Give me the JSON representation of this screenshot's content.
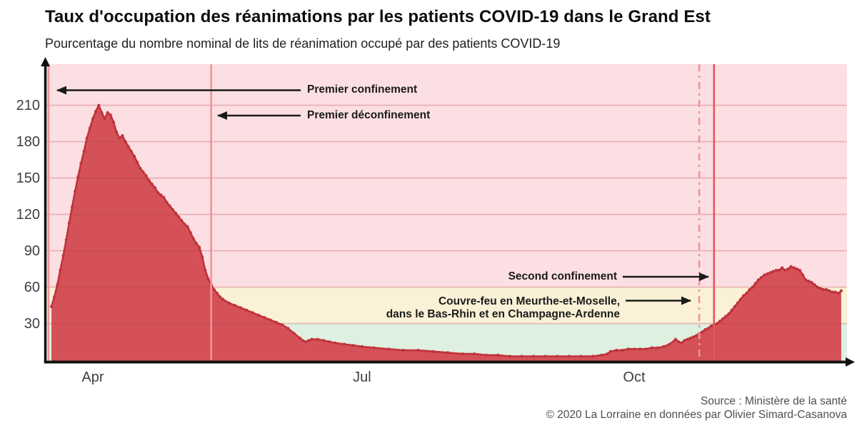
{
  "title": "Taux d'occupation des réanimations par les patients COVID-19 dans le Grand Est",
  "subtitle": "Pourcentage du nombre nominal de lits de réanimation occupé par des patients COVID-19",
  "footer": {
    "source_line": "Source : Ministère de la santé",
    "credit_line": "© 2020 La Lorraine en données par Olivier Simard-Casanova"
  },
  "annotations": {
    "premier_confinement": "Premier confinement",
    "premier_deconfinement": "Premier déconfinement",
    "second_confinement": "Second confinement",
    "couvre_feu_line1": "Couvre-feu en Meurthe-et-Moselle,",
    "couvre_feu_line2": "dans le Bas-Rhin et en Champagne-Ardenne"
  },
  "chart_data": {
    "type": "area",
    "title": "Taux d'occupation des réanimations par les patients COVID-19 dans le Grand Est",
    "xlabel": "",
    "ylabel": "",
    "ylim": [
      0,
      245
    ],
    "yticks": [
      30,
      60,
      90,
      120,
      150,
      180,
      210
    ],
    "xticks": [
      {
        "date": "2020-04-01",
        "label": "Apr"
      },
      {
        "date": "2020-07-01",
        "label": "Jul"
      },
      {
        "date": "2020-10-01",
        "label": "Oct"
      }
    ],
    "x_start_date": "2020-03-18",
    "grid": true,
    "legend": "none",
    "colors": {
      "band_green": "#def0e0",
      "band_yellow": "#faf1d7",
      "band_pink": "#fcdfe2",
      "gridline": "rgba(235,140,150,0.38)",
      "event_line_light": "#ef949a",
      "event_line_strong": "#e25560",
      "area_fill": "#d45158",
      "area_line": "#c0333c",
      "axis": "#111111",
      "annotation_arrow": "#1a1a1a"
    },
    "bands": [
      {
        "from": 0,
        "to": 30,
        "color_key": "band_green"
      },
      {
        "from": 30,
        "to": 60,
        "color_key": "band_yellow"
      },
      {
        "from": 60,
        "to": 245,
        "color_key": "band_pink"
      }
    ],
    "events": [
      {
        "date": "2020-03-17",
        "label": "Premier confinement",
        "style": "solid",
        "color_key": "event_line_light"
      },
      {
        "date": "2020-05-11",
        "label": "Premier déconfinement",
        "style": "solid",
        "color_key": "event_line_light"
      },
      {
        "date": "2020-10-23",
        "label": "Couvre-feu en Meurthe-et-Moselle, dans le Bas-Rhin et en Champagne-Ardenne",
        "style": "dashdot",
        "color_key": "event_line_light"
      },
      {
        "date": "2020-10-28",
        "label": "Second confinement",
        "style": "solid",
        "color_key": "event_line_strong"
      }
    ],
    "series": [
      {
        "name": "Taux d'occupation des réanimations (%)",
        "points": [
          [
            "2020-03-18",
            44
          ],
          [
            "2020-03-19",
            52
          ],
          [
            "2020-03-20",
            62
          ],
          [
            "2020-03-21",
            74
          ],
          [
            "2020-03-22",
            86
          ],
          [
            "2020-03-23",
            99
          ],
          [
            "2020-03-24",
            113
          ],
          [
            "2020-03-25",
            126
          ],
          [
            "2020-03-26",
            139
          ],
          [
            "2020-03-27",
            151
          ],
          [
            "2020-03-28",
            162
          ],
          [
            "2020-03-29",
            172
          ],
          [
            "2020-03-30",
            183
          ],
          [
            "2020-03-31",
            191
          ],
          [
            "2020-04-01",
            199
          ],
          [
            "2020-04-02",
            205
          ],
          [
            "2020-04-03",
            210
          ],
          [
            "2020-04-04",
            204
          ],
          [
            "2020-04-05",
            199
          ],
          [
            "2020-04-06",
            204
          ],
          [
            "2020-04-07",
            202
          ],
          [
            "2020-04-08",
            196
          ],
          [
            "2020-04-09",
            188
          ],
          [
            "2020-04-10",
            183
          ],
          [
            "2020-04-11",
            185
          ],
          [
            "2020-04-12",
            180
          ],
          [
            "2020-04-13",
            176
          ],
          [
            "2020-04-14",
            172
          ],
          [
            "2020-04-15",
            168
          ],
          [
            "2020-04-16",
            163
          ],
          [
            "2020-04-17",
            158
          ],
          [
            "2020-04-18",
            155
          ],
          [
            "2020-04-19",
            152
          ],
          [
            "2020-04-20",
            148
          ],
          [
            "2020-04-21",
            145
          ],
          [
            "2020-04-22",
            142
          ],
          [
            "2020-04-23",
            138
          ],
          [
            "2020-04-24",
            136
          ],
          [
            "2020-04-25",
            134
          ],
          [
            "2020-04-26",
            130
          ],
          [
            "2020-04-27",
            127
          ],
          [
            "2020-04-28",
            124
          ],
          [
            "2020-04-29",
            121
          ],
          [
            "2020-04-30",
            118
          ],
          [
            "2020-05-01",
            115
          ],
          [
            "2020-05-02",
            112
          ],
          [
            "2020-05-03",
            110
          ],
          [
            "2020-05-04",
            105
          ],
          [
            "2020-05-05",
            100
          ],
          [
            "2020-05-06",
            96
          ],
          [
            "2020-05-07",
            93
          ],
          [
            "2020-05-08",
            85
          ],
          [
            "2020-05-09",
            74
          ],
          [
            "2020-05-10",
            67
          ],
          [
            "2020-05-11",
            62
          ],
          [
            "2020-05-12",
            58
          ],
          [
            "2020-05-13",
            55
          ],
          [
            "2020-05-14",
            52
          ],
          [
            "2020-05-15",
            50
          ],
          [
            "2020-05-17",
            47
          ],
          [
            "2020-05-19",
            45
          ],
          [
            "2020-05-21",
            43
          ],
          [
            "2020-05-23",
            41
          ],
          [
            "2020-05-25",
            39
          ],
          [
            "2020-05-27",
            37
          ],
          [
            "2020-05-29",
            35
          ],
          [
            "2020-05-31",
            33
          ],
          [
            "2020-06-02",
            31
          ],
          [
            "2020-06-04",
            29
          ],
          [
            "2020-06-06",
            26
          ],
          [
            "2020-06-08",
            22
          ],
          [
            "2020-06-10",
            18
          ],
          [
            "2020-06-11",
            16
          ],
          [
            "2020-06-12",
            15
          ],
          [
            "2020-06-13",
            16
          ],
          [
            "2020-06-14",
            17
          ],
          [
            "2020-06-16",
            17
          ],
          [
            "2020-06-18",
            16
          ],
          [
            "2020-06-20",
            15
          ],
          [
            "2020-06-22",
            14
          ],
          [
            "2020-06-25",
            13
          ],
          [
            "2020-06-28",
            12
          ],
          [
            "2020-07-01",
            11
          ],
          [
            "2020-07-05",
            10
          ],
          [
            "2020-07-10",
            9
          ],
          [
            "2020-07-15",
            8
          ],
          [
            "2020-07-20",
            8
          ],
          [
            "2020-07-25",
            7
          ],
          [
            "2020-07-30",
            6
          ],
          [
            "2020-08-04",
            5
          ],
          [
            "2020-08-08",
            5
          ],
          [
            "2020-08-12",
            4
          ],
          [
            "2020-08-16",
            4
          ],
          [
            "2020-08-20",
            3
          ],
          [
            "2020-08-24",
            3
          ],
          [
            "2020-08-28",
            3
          ],
          [
            "2020-09-01",
            3
          ],
          [
            "2020-09-05",
            3
          ],
          [
            "2020-09-09",
            3
          ],
          [
            "2020-09-13",
            3
          ],
          [
            "2020-09-17",
            3
          ],
          [
            "2020-09-20",
            4
          ],
          [
            "2020-09-22",
            5
          ],
          [
            "2020-09-23",
            7
          ],
          [
            "2020-09-25",
            8
          ],
          [
            "2020-09-27",
            8
          ],
          [
            "2020-09-29",
            9
          ],
          [
            "2020-10-01",
            9
          ],
          [
            "2020-10-03",
            9
          ],
          [
            "2020-10-05",
            9
          ],
          [
            "2020-10-07",
            10
          ],
          [
            "2020-10-09",
            10
          ],
          [
            "2020-10-11",
            11
          ],
          [
            "2020-10-13",
            13
          ],
          [
            "2020-10-15",
            17
          ],
          [
            "2020-10-16",
            15
          ],
          [
            "2020-10-17",
            14
          ],
          [
            "2020-10-18",
            16
          ],
          [
            "2020-10-19",
            17
          ],
          [
            "2020-10-20",
            18
          ],
          [
            "2020-10-21",
            19
          ],
          [
            "2020-10-22",
            20
          ],
          [
            "2020-10-23",
            22
          ],
          [
            "2020-10-24",
            23
          ],
          [
            "2020-10-25",
            25
          ],
          [
            "2020-10-26",
            26
          ],
          [
            "2020-10-27",
            28
          ],
          [
            "2020-10-28",
            29
          ],
          [
            "2020-10-29",
            30
          ],
          [
            "2020-10-30",
            32
          ],
          [
            "2020-10-31",
            34
          ],
          [
            "2020-11-01",
            36
          ],
          [
            "2020-11-02",
            38
          ],
          [
            "2020-11-03",
            41
          ],
          [
            "2020-11-04",
            44
          ],
          [
            "2020-11-05",
            47
          ],
          [
            "2020-11-06",
            50
          ],
          [
            "2020-11-07",
            53
          ],
          [
            "2020-11-08",
            55
          ],
          [
            "2020-11-09",
            58
          ],
          [
            "2020-11-10",
            60
          ],
          [
            "2020-11-11",
            63
          ],
          [
            "2020-11-12",
            66
          ],
          [
            "2020-11-13",
            68
          ],
          [
            "2020-11-14",
            70
          ],
          [
            "2020-11-15",
            71
          ],
          [
            "2020-11-16",
            72
          ],
          [
            "2020-11-17",
            73
          ],
          [
            "2020-11-18",
            74
          ],
          [
            "2020-11-19",
            74
          ],
          [
            "2020-11-20",
            76
          ],
          [
            "2020-11-21",
            74
          ],
          [
            "2020-11-22",
            75
          ],
          [
            "2020-11-23",
            77
          ],
          [
            "2020-11-24",
            76
          ],
          [
            "2020-11-25",
            75
          ],
          [
            "2020-11-26",
            74
          ],
          [
            "2020-11-27",
            70
          ],
          [
            "2020-11-28",
            66
          ],
          [
            "2020-11-29",
            65
          ],
          [
            "2020-11-30",
            64
          ],
          [
            "2020-12-01",
            62
          ],
          [
            "2020-12-02",
            60
          ],
          [
            "2020-12-03",
            59
          ],
          [
            "2020-12-04",
            58
          ],
          [
            "2020-12-05",
            58
          ],
          [
            "2020-12-06",
            57
          ],
          [
            "2020-12-07",
            56
          ],
          [
            "2020-12-08",
            56
          ],
          [
            "2020-12-09",
            55
          ],
          [
            "2020-12-10",
            57
          ]
        ]
      }
    ]
  }
}
